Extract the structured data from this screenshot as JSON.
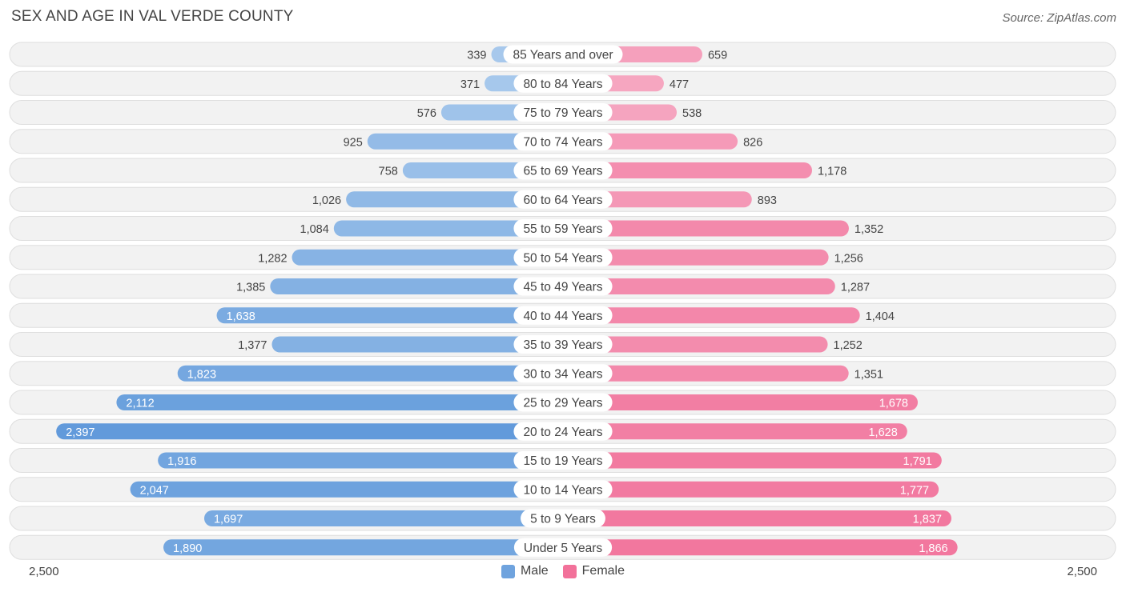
{
  "title": "SEX AND AGE IN VAL VERDE COUNTY",
  "source": "Source: ZipAtlas.com",
  "axis": {
    "left_label": "2,500",
    "right_label": "2,500"
  },
  "legend": [
    {
      "label": "Male",
      "color": "#6fa3de"
    },
    {
      "label": "Female",
      "color": "#f2719a"
    }
  ],
  "chart_data": {
    "type": "bar",
    "orientation": "horizontal-diverging",
    "categories": [
      "85 Years and over",
      "80 to 84 Years",
      "75 to 79 Years",
      "70 to 74 Years",
      "65 to 69 Years",
      "60 to 64 Years",
      "55 to 59 Years",
      "50 to 54 Years",
      "45 to 49 Years",
      "40 to 44 Years",
      "35 to 39 Years",
      "30 to 34 Years",
      "25 to 29 Years",
      "20 to 24 Years",
      "15 to 19 Years",
      "10 to 14 Years",
      "5 to 9 Years",
      "Under 5 Years"
    ],
    "series": [
      {
        "name": "Male",
        "values": [
          339,
          371,
          576,
          925,
          758,
          1026,
          1084,
          1282,
          1385,
          1638,
          1377,
          1823,
          2112,
          2397,
          1916,
          2047,
          1697,
          1890
        ],
        "labels": [
          "339",
          "371",
          "576",
          "925",
          "758",
          "1,026",
          "1,084",
          "1,282",
          "1,385",
          "1,638",
          "1,377",
          "1,823",
          "2,112",
          "2,397",
          "1,916",
          "2,047",
          "1,697",
          "1,890"
        ]
      },
      {
        "name": "Female",
        "values": [
          659,
          477,
          538,
          826,
          1178,
          893,
          1352,
          1256,
          1287,
          1404,
          1252,
          1351,
          1678,
          1628,
          1791,
          1777,
          1837,
          1866
        ],
        "labels": [
          "659",
          "477",
          "538",
          "826",
          "1,178",
          "893",
          "1,352",
          "1,256",
          "1,287",
          "1,404",
          "1,252",
          "1,351",
          "1,678",
          "1,628",
          "1,791",
          "1,777",
          "1,837",
          "1,866"
        ]
      }
    ],
    "xlim": [
      -2500,
      2500
    ]
  }
}
